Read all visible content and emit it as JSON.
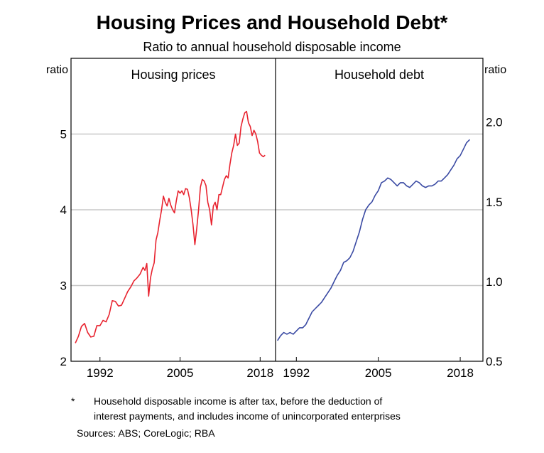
{
  "title": "Housing Prices and Household Debt*",
  "subtitle": "Ratio to annual household disposable income",
  "footnote": {
    "mark": "*",
    "line1": "Household disposable income is after tax, before the deduction of",
    "line2": "interest payments, and includes income of unincorporated enterprises"
  },
  "sources": "Sources: ABS; CoreLogic; RBA",
  "colors": {
    "housing": "#e8232f",
    "debt": "#3a4aa3",
    "grid": "#c8c8c8"
  },
  "chart_data": [
    {
      "type": "line",
      "title": "Housing prices",
      "ylabel": "ratio",
      "ylim": [
        2,
        6
      ],
      "yticks": [
        2,
        3,
        4,
        5
      ],
      "xlim": [
        1987.3,
        2020.5
      ],
      "xticks": [
        1992,
        2005,
        2018
      ],
      "grid": true,
      "series": [
        {
          "color": "#e8232f",
          "x": [
            1988.0,
            1988.5,
            1989.0,
            1989.5,
            1990.0,
            1990.5,
            1991.0,
            1991.5,
            1992.0,
            1992.5,
            1993.0,
            1993.5,
            1994.0,
            1994.5,
            1995.0,
            1995.5,
            1996.0,
            1996.5,
            1997.0,
            1997.5,
            1998.0,
            1998.5,
            1999.0,
            1999.3,
            1999.6,
            1999.9,
            2000.2,
            2000.5,
            2000.8,
            2001.1,
            2001.4,
            2001.7,
            2002.0,
            2002.3,
            2002.6,
            2002.9,
            2003.2,
            2003.5,
            2003.8,
            2004.1,
            2004.4,
            2004.7,
            2005.0,
            2005.3,
            2005.6,
            2005.9,
            2006.2,
            2006.5,
            2006.8,
            2007.1,
            2007.4,
            2007.7,
            2008.0,
            2008.3,
            2008.6,
            2008.9,
            2009.2,
            2009.5,
            2009.8,
            2010.1,
            2010.4,
            2010.7,
            2011.0,
            2011.3,
            2011.6,
            2011.9,
            2012.2,
            2012.5,
            2012.8,
            2013.1,
            2013.4,
            2013.7,
            2014.0,
            2014.3,
            2014.6,
            2014.9,
            2015.2,
            2015.5,
            2015.8,
            2016.1,
            2016.4,
            2016.7,
            2017.0,
            2017.3,
            2017.6,
            2017.9,
            2018.2,
            2018.5,
            2018.8
          ],
          "values": [
            2.24,
            2.33,
            2.46,
            2.5,
            2.38,
            2.32,
            2.33,
            2.47,
            2.47,
            2.54,
            2.52,
            2.62,
            2.8,
            2.79,
            2.73,
            2.74,
            2.83,
            2.92,
            2.98,
            3.06,
            3.1,
            3.15,
            3.24,
            3.2,
            3.29,
            2.86,
            3.1,
            3.22,
            3.3,
            3.6,
            3.7,
            3.86,
            4.0,
            4.18,
            4.1,
            4.05,
            4.15,
            4.06,
            4.0,
            3.96,
            4.12,
            4.25,
            4.22,
            4.25,
            4.2,
            4.28,
            4.27,
            4.16,
            4.0,
            3.8,
            3.54,
            3.75,
            4.0,
            4.3,
            4.4,
            4.38,
            4.32,
            4.1,
            4.0,
            3.8,
            4.05,
            4.1,
            4.0,
            4.2,
            4.2,
            4.3,
            4.4,
            4.45,
            4.42,
            4.6,
            4.75,
            4.85,
            5.0,
            4.85,
            4.88,
            5.1,
            5.2,
            5.28,
            5.3,
            5.15,
            5.1,
            4.98,
            5.05,
            5.0,
            4.9,
            4.75,
            4.72,
            4.7,
            4.72
          ]
        }
      ]
    },
    {
      "type": "line",
      "title": "Household debt",
      "ylabel": "ratio",
      "ylim": [
        0.5,
        2.4
      ],
      "yticks": [
        0.5,
        1.0,
        1.5,
        2.0
      ],
      "ytick_labels": [
        "0.5",
        "1.0",
        "1.5",
        "2.0"
      ],
      "xlim": [
        1988.7,
        2021.6
      ],
      "xticks": [
        1992,
        2005,
        2018
      ],
      "grid": true,
      "series": [
        {
          "color": "#3a4aa3",
          "x": [
            1989.0,
            1989.5,
            1990.0,
            1990.5,
            1991.0,
            1991.5,
            1992.0,
            1992.5,
            1993.0,
            1993.5,
            1994.0,
            1994.5,
            1995.0,
            1995.5,
            1996.0,
            1996.5,
            1997.0,
            1997.5,
            1998.0,
            1998.5,
            1999.0,
            1999.5,
            2000.0,
            2000.5,
            2001.0,
            2001.5,
            2002.0,
            2002.5,
            2003.0,
            2003.5,
            2004.0,
            2004.5,
            2005.0,
            2005.5,
            2006.0,
            2006.5,
            2007.0,
            2007.5,
            2008.0,
            2008.5,
            2009.0,
            2009.5,
            2010.0,
            2010.5,
            2011.0,
            2011.5,
            2012.0,
            2012.5,
            2013.0,
            2013.5,
            2014.0,
            2014.5,
            2015.0,
            2015.5,
            2016.0,
            2016.5,
            2017.0,
            2017.5,
            2018.0,
            2018.5,
            2019.0,
            2019.5
          ],
          "values": [
            0.63,
            0.66,
            0.68,
            0.67,
            0.68,
            0.67,
            0.69,
            0.71,
            0.71,
            0.73,
            0.77,
            0.81,
            0.83,
            0.85,
            0.87,
            0.9,
            0.93,
            0.96,
            1.0,
            1.04,
            1.07,
            1.12,
            1.13,
            1.15,
            1.19,
            1.25,
            1.31,
            1.39,
            1.45,
            1.48,
            1.5,
            1.54,
            1.57,
            1.62,
            1.63,
            1.65,
            1.64,
            1.62,
            1.6,
            1.62,
            1.62,
            1.6,
            1.59,
            1.61,
            1.63,
            1.62,
            1.6,
            1.59,
            1.6,
            1.6,
            1.61,
            1.63,
            1.63,
            1.65,
            1.67,
            1.7,
            1.73,
            1.77,
            1.79,
            1.83,
            1.87,
            1.89
          ]
        }
      ]
    }
  ]
}
